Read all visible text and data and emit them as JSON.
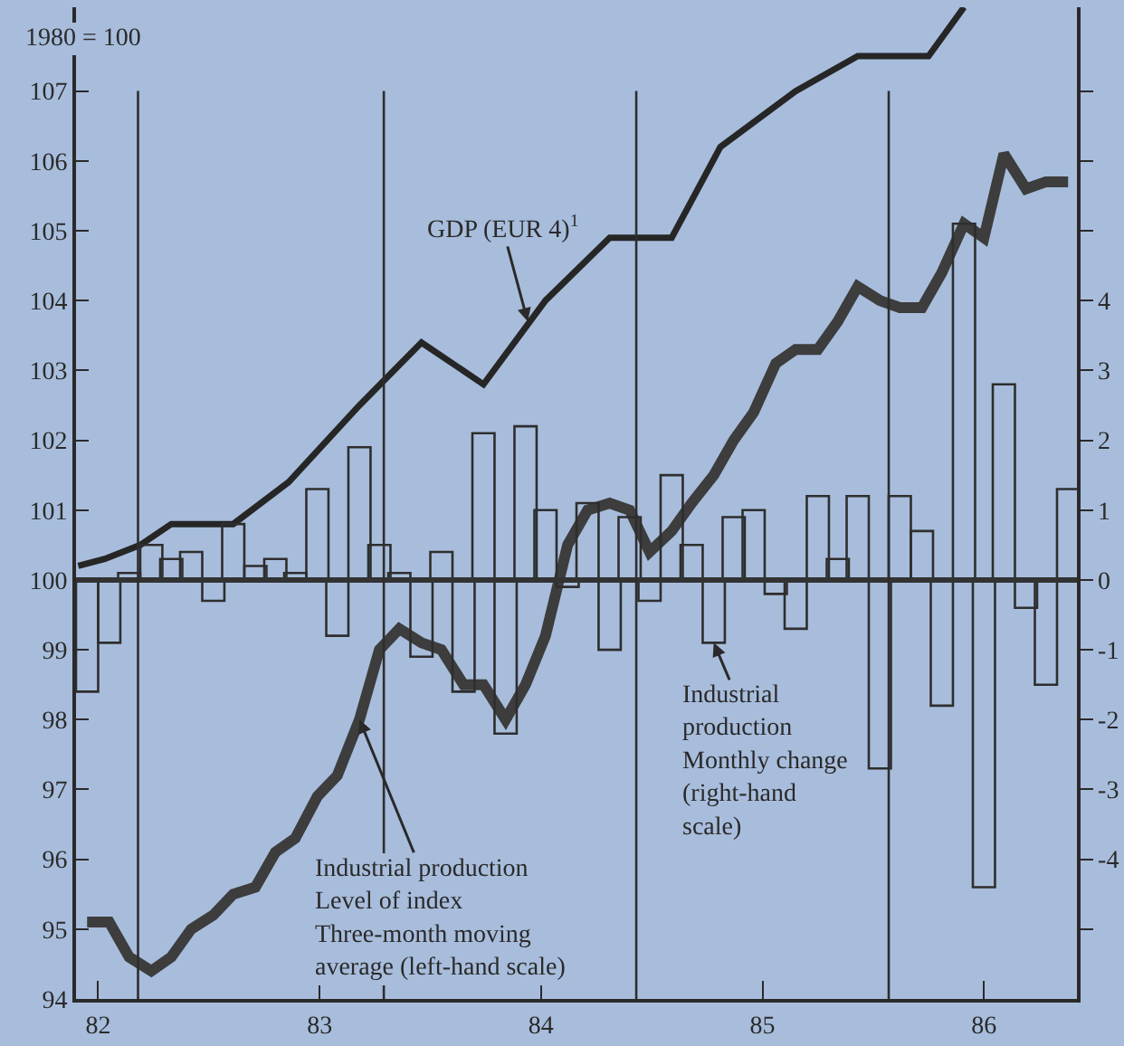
{
  "chart_data": {
    "type": "line",
    "ylabel": "1980 = 100",
    "xlim": [
      81.9,
      86.42
    ],
    "xticks": [
      82,
      83,
      84,
      85,
      86
    ],
    "ylim": [
      94,
      108.2
    ],
    "yticks": [
      94,
      95,
      96,
      97,
      98,
      99,
      100,
      101,
      102,
      103,
      104,
      105,
      106,
      107
    ],
    "y2lim": [
      -6,
      8.2
    ],
    "y2ticks": [
      {
        "value": 7,
        "label": null
      },
      {
        "value": 6,
        "label": null
      },
      {
        "value": 5,
        "label": null
      },
      4,
      3,
      2,
      1,
      0,
      -1,
      -2,
      -3,
      -4,
      {
        "value": -5,
        "label": null
      }
    ],
    "grid": false,
    "x": [
      81.95,
      82.05,
      82.14,
      82.24,
      82.33,
      82.42,
      82.52,
      82.61,
      82.71,
      82.8,
      82.89,
      82.99,
      83.08,
      83.18,
      83.27,
      83.36,
      83.46,
      83.55,
      83.65,
      83.74,
      83.84,
      83.93,
      84.02,
      84.12,
      84.21,
      84.31,
      84.4,
      84.49,
      84.59,
      84.68,
      84.78,
      84.87,
      84.96,
      85.06,
      85.15,
      85.25,
      85.34,
      85.43,
      85.53,
      85.62,
      85.72,
      85.81,
      85.91,
      86.0,
      86.09,
      86.19,
      86.28,
      86.38
    ],
    "series": [
      {
        "type": "bar",
        "axis": "y2",
        "color": "#2e2e2e",
        "values": [
          -1.6,
          -0.9,
          0.1,
          0.5,
          0.3,
          0.4,
          -0.3,
          0.8,
          0.2,
          0.3,
          0.1,
          1.3,
          -0.8,
          1.9,
          0.5,
          0.1,
          -1.1,
          0.4,
          -1.6,
          2.1,
          -2.2,
          2.2,
          1.0,
          -0.1,
          1.1,
          -1.0,
          0.9,
          -0.3,
          1.5,
          0.5,
          -0.9,
          0.9,
          1.0,
          -0.2,
          -0.7,
          1.2,
          0.3,
          1.2,
          -2.7,
          1.2,
          0.7,
          -1.8,
          5.1,
          -4.4,
          2.8,
          -0.4,
          -1.5,
          1.3
        ]
      },
      {
        "color": "#3d3d3d",
        "values": [
          95.1,
          95.1,
          94.6,
          94.4,
          94.6,
          95.0,
          95.2,
          95.5,
          95.6,
          96.1,
          96.3,
          96.9,
          97.2,
          98.0,
          99.0,
          99.3,
          99.1,
          99.0,
          98.5,
          98.5,
          98.0,
          98.5,
          99.2,
          100.5,
          101.0,
          101.1,
          101.0,
          100.4,
          100.7,
          101.1,
          101.5,
          102.0,
          102.4,
          103.1,
          103.3,
          103.3,
          103.7,
          104.2,
          104.0,
          103.9,
          103.9,
          104.4,
          105.1,
          104.9,
          106.1,
          105.6,
          105.7,
          105.7
        ]
      },
      {
        "color": "#262626",
        "x": [
          81.91,
          82.03,
          82.19,
          82.33,
          82.61,
          82.86,
          83.18,
          83.46,
          83.74,
          84.02,
          84.31,
          84.59,
          84.81,
          85.15,
          85.43,
          85.75,
          85.91
        ],
        "values": [
          100.2,
          100.3,
          100.5,
          100.8,
          100.8,
          101.4,
          102.5,
          103.4,
          102.8,
          104.0,
          104.9,
          104.9,
          106.2,
          107.0,
          107.5,
          107.5,
          108.2
        ]
      }
    ],
    "ref_lines": [
      {
        "axis": "y",
        "value": 100,
        "color": "#333333"
      },
      {
        "axis": "x",
        "value": 82.18,
        "color": "#2e2e2e"
      },
      {
        "axis": "x",
        "value": 83.29,
        "color": "#2e2e2e"
      },
      {
        "axis": "x",
        "value": 84.43,
        "color": "#2e2e2e"
      },
      {
        "axis": "x",
        "value": 85.57,
        "color": "#2e2e2e"
      }
    ],
    "annotations": [
      {
        "text": "GDP (EUR 4)$^{1}$",
        "x": 83.94,
        "y": 103.7
      },
      {
        "text": "Industrial production\nLevel of index\nThree-month moving\naverage (left-hand scale)",
        "x": 83.18,
        "y": 98.0
      },
      {
        "text": "Industrial\nproduction\nMonthly change\n(right-hand\nscale)",
        "x": 84.78,
        "y": 99.1
      }
    ]
  }
}
